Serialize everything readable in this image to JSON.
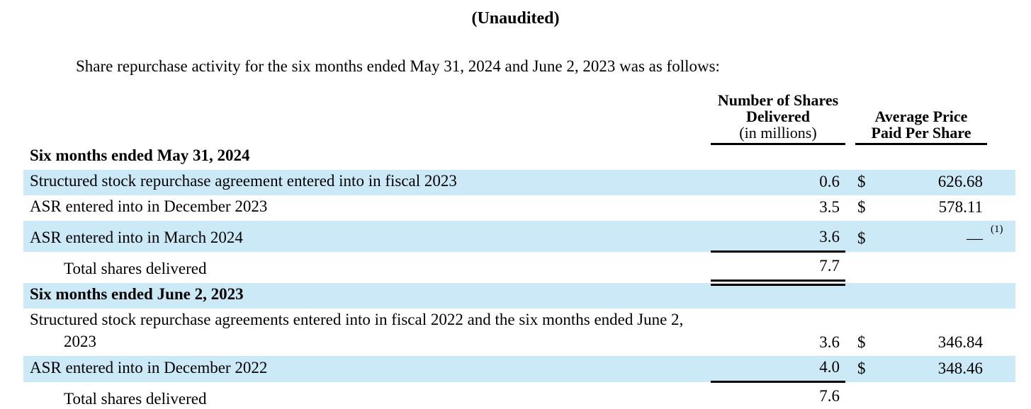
{
  "document": {
    "title": "(Unaudited)",
    "intro": "Share repurchase activity for the six months ended May 31, 2024 and June 2, 2023 was as follows:"
  },
  "colors": {
    "row_highlight": "#cce9f8",
    "text": "#000000",
    "rule": "#000000"
  },
  "table": {
    "column_headers": {
      "shares_line1": "Number of Shares",
      "shares_line2": "Delivered",
      "shares_line3": "(in millions)",
      "price_line1": "Average Price",
      "price_line2": "Paid Per Share"
    },
    "rows": [
      {
        "type": "section_header",
        "label": "Six months ended May 31, 2024",
        "highlighted": false
      },
      {
        "type": "data",
        "label": "Structured stock repurchase agreement entered into in fiscal 2023",
        "shares": "0.6",
        "currency": "$",
        "price": "626.68",
        "highlighted": true
      },
      {
        "type": "data",
        "label": "ASR entered into in December 2023",
        "shares": "3.5",
        "currency": "$",
        "price": "578.11",
        "highlighted": false
      },
      {
        "type": "data",
        "label": "ASR entered into in March 2024",
        "shares": "3.6",
        "currency": "$",
        "price": "—",
        "footnote": "(1)",
        "highlighted": true
      },
      {
        "type": "total",
        "label": "Total shares delivered",
        "shares": "7.7",
        "highlighted": false
      },
      {
        "type": "section_header",
        "label": "Six months ended June 2, 2023",
        "highlighted": true
      },
      {
        "type": "data",
        "label": "Structured stock repurchase agreements entered into in fiscal 2022 and the six months ended June 2, 2023",
        "shares": "3.6",
        "currency": "$",
        "price": "346.84",
        "highlighted": false
      },
      {
        "type": "data",
        "label": "ASR entered into in December 2022",
        "shares": "4.0",
        "currency": "$",
        "price": "348.46",
        "highlighted": true
      },
      {
        "type": "total",
        "label": "Total shares delivered",
        "shares": "7.6",
        "highlighted": false
      }
    ]
  }
}
